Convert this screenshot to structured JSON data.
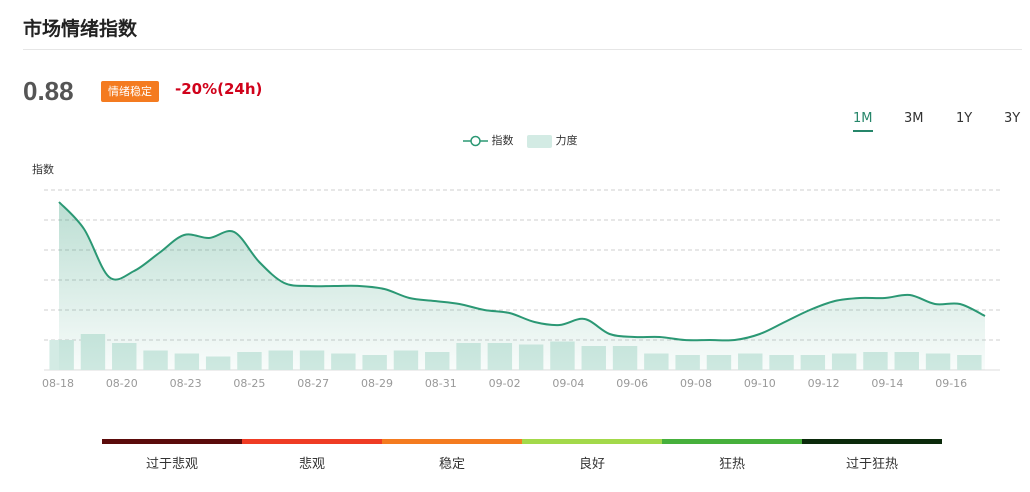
{
  "header": {
    "title": "市场情绪指数"
  },
  "summary": {
    "value": "0.88",
    "badge": "情绪稳定",
    "change": "-20%(24h)"
  },
  "tabs": [
    {
      "label": "1M",
      "active": true
    },
    {
      "label": "3M",
      "active": false
    },
    {
      "label": "1Y",
      "active": false
    },
    {
      "label": "3Y",
      "active": false
    }
  ],
  "legend": {
    "index_label": "指数",
    "strength_label": "力度"
  },
  "colors": {
    "line": "#2b9874",
    "area": "#2b9874",
    "bar": "#d3ebe4",
    "accent": "#26866a",
    "badge": "#f47b20",
    "negative": "#d0021b"
  },
  "chart_data": {
    "type": "line",
    "y_axis_label": "指数",
    "x_tick_labels": [
      "08-18",
      "08-20",
      "08-23",
      "08-25",
      "08-27",
      "08-29",
      "08-31",
      "09-02",
      "09-04",
      "09-06",
      "09-08",
      "09-10",
      "09-12",
      "09-14",
      "09-16"
    ],
    "grid": "horizontal-dashed",
    "series": [
      {
        "name": "指数",
        "type": "line",
        "values": [
          5.6,
          4.7,
          3.1,
          3.3,
          3.9,
          4.5,
          4.4,
          4.6,
          3.6,
          2.9,
          2.8,
          2.8,
          2.8,
          2.7,
          2.4,
          2.3,
          2.2,
          2.0,
          1.9,
          1.6,
          1.5,
          1.7,
          1.2,
          1.1,
          1.1,
          1.0,
          1.0,
          1.0,
          1.2,
          1.6,
          2.0,
          2.3,
          2.4,
          2.4,
          2.5,
          2.2,
          2.2,
          1.8
        ]
      },
      {
        "name": "力度",
        "type": "bar",
        "values": [
          1.0,
          1.2,
          0.9,
          0.65,
          0.55,
          0.45,
          0.6,
          0.65,
          0.65,
          0.55,
          0.5,
          0.65,
          0.6,
          0.9,
          0.9,
          0.85,
          0.95,
          0.8,
          0.8,
          0.55,
          0.5,
          0.5,
          0.55,
          0.5,
          0.5,
          0.55,
          0.6,
          0.6,
          0.55,
          0.5
        ]
      }
    ],
    "y_range": [
      0,
      6
    ]
  },
  "sentiment_scale": [
    {
      "label": "过于悲观",
      "color": "#5b0b0b"
    },
    {
      "label": "悲观",
      "color": "#ef3c24"
    },
    {
      "label": "稳定",
      "color": "#f47b20"
    },
    {
      "label": "良好",
      "color": "#a3d94a"
    },
    {
      "label": "狂热",
      "color": "#46b03c"
    },
    {
      "label": "过于狂热",
      "color": "#0b2a0b"
    }
  ]
}
